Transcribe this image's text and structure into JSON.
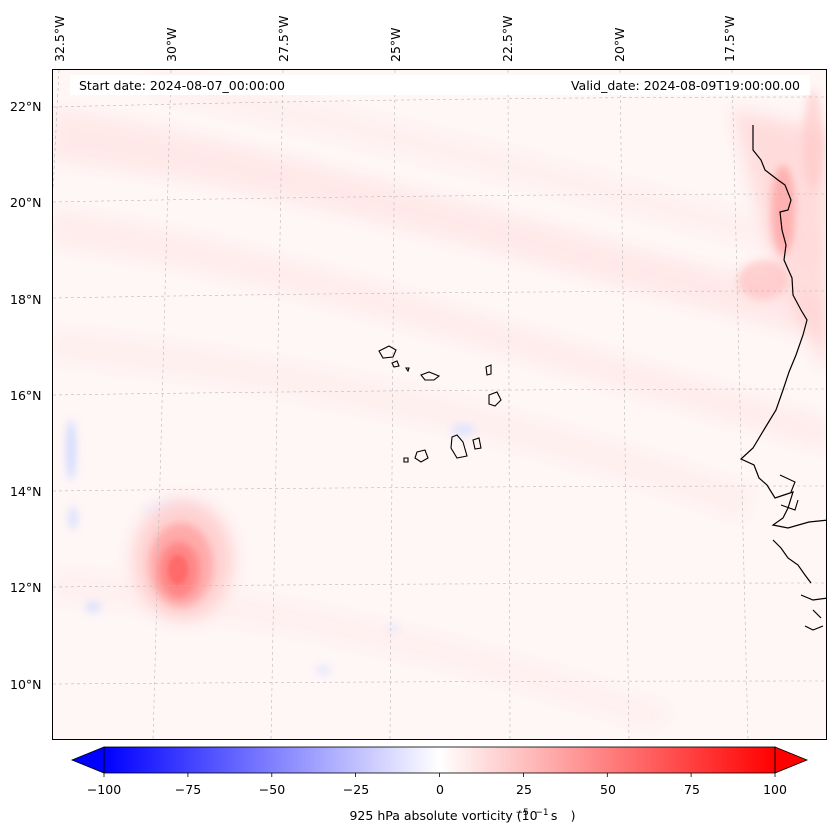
{
  "map": {
    "start_date": "Start date: 2024-08-07_00:00:00",
    "valid_date": "Valid_date: 2024-08-09T19:00:00.00",
    "lat_labels": [
      "22°N",
      "20°N",
      "18°N",
      "16°N",
      "14°N",
      "12°N",
      "10°N"
    ],
    "lon_labels": [
      "32.5°W",
      "30°W",
      "27.5°W",
      "25°W",
      "22.5°W",
      "20°W",
      "17.5°W"
    ],
    "field": "925 hPa absolute vorticity",
    "features": [
      "coastline-west-africa",
      "cape-verde-islands",
      "vorticity-maximum"
    ]
  },
  "colorbar": {
    "title_prefix": "925 hPa absolute vorticity (10",
    "title_exp1": "−5",
    "title_mid": "s",
    "title_exp2": "−1",
    "title_suffix": ")",
    "ticks": [
      "−100",
      "−75",
      "−50",
      "−25",
      "0",
      "25",
      "50",
      "75",
      "100"
    ],
    "min": -100,
    "max": 100,
    "colormap": "bwr",
    "negative_color": "#0000ff",
    "positive_color": "#ff0000"
  },
  "chart_data": {
    "type": "heatmap",
    "title": "",
    "colorbar_label": "925 hPa absolute vorticity (10^-5 s^-1)",
    "lat_ticks": [
      22,
      20,
      18,
      16,
      14,
      12,
      10
    ],
    "lon_ticks": [
      -32.5,
      -30,
      -27.5,
      -25,
      -22.5,
      -20,
      -17.5
    ],
    "lat_range": [
      9,
      22.8
    ],
    "lon_range": [
      -33,
      -16
    ],
    "value_range": [
      -100,
      100
    ],
    "grid": true,
    "peak_vorticity_lat_lon": [
      12.3,
      -29.5
    ]
  }
}
